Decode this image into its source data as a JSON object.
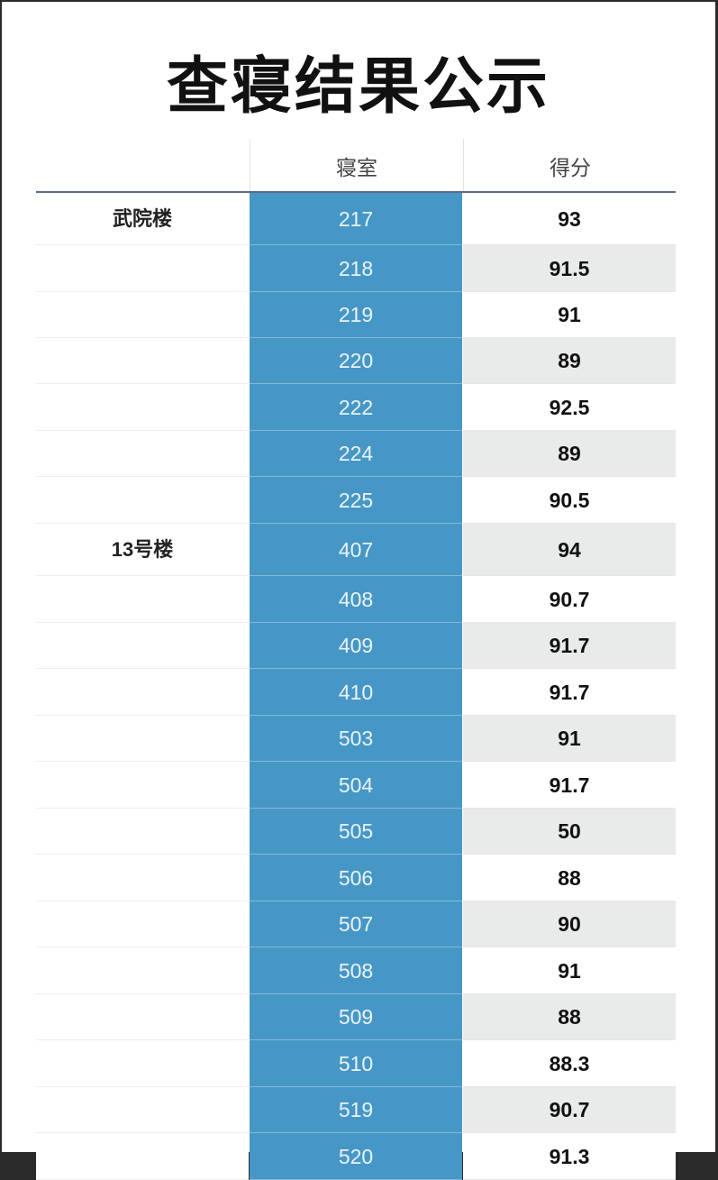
{
  "title": "查寝结果公示",
  "columns": {
    "building": "",
    "room": "寝室",
    "score": "得分"
  },
  "rows": [
    {
      "building": "武院楼",
      "room": "217",
      "score": "93"
    },
    {
      "building": "",
      "room": "218",
      "score": "91.5"
    },
    {
      "building": "",
      "room": "219",
      "score": "91"
    },
    {
      "building": "",
      "room": "220",
      "score": "89"
    },
    {
      "building": "",
      "room": "222",
      "score": "92.5"
    },
    {
      "building": "",
      "room": "224",
      "score": "89"
    },
    {
      "building": "",
      "room": "225",
      "score": "90.5"
    },
    {
      "building": "13号楼",
      "room": "407",
      "score": "94"
    },
    {
      "building": "",
      "room": "408",
      "score": "90.7"
    },
    {
      "building": "",
      "room": "409",
      "score": "91.7"
    },
    {
      "building": "",
      "room": "410",
      "score": "91.7"
    },
    {
      "building": "",
      "room": "503",
      "score": "91"
    },
    {
      "building": "",
      "room": "504",
      "score": "91.7"
    },
    {
      "building": "",
      "room": "505",
      "score": "50"
    },
    {
      "building": "",
      "room": "506",
      "score": "88"
    },
    {
      "building": "",
      "room": "507",
      "score": "90"
    },
    {
      "building": "",
      "room": "508",
      "score": "91"
    },
    {
      "building": "",
      "room": "509",
      "score": "88"
    },
    {
      "building": "",
      "room": "510",
      "score": "88.3"
    },
    {
      "building": "",
      "room": "519",
      "score": "90.7"
    },
    {
      "building": "",
      "room": "520",
      "score": "91.3"
    }
  ],
  "colors": {
    "room_column": "#4797c6",
    "alt_row": "#e9ebea",
    "header_rule": "#5a6d86"
  }
}
